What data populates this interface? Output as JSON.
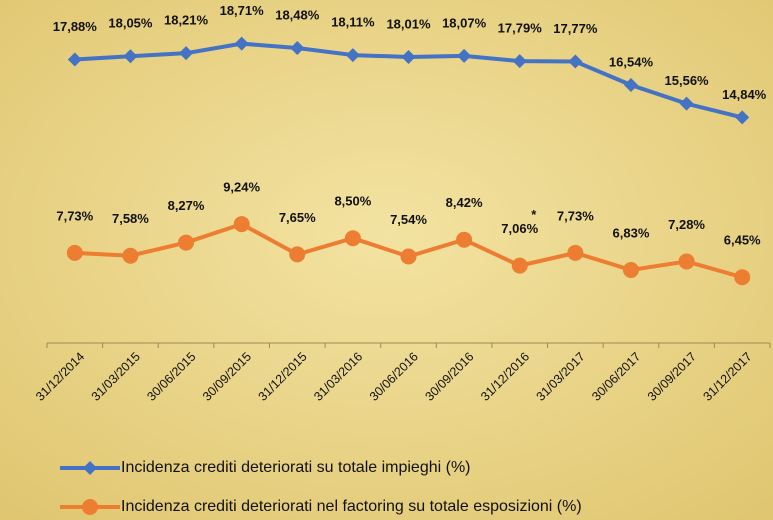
{
  "chart_data": {
    "type": "line",
    "categories": [
      "31/12/2014",
      "31/03/2015",
      "30/06/2015",
      "30/09/2015",
      "31/12/2015",
      "31/03/2016",
      "30/06/2016",
      "30/09/2016",
      "31/12/2016",
      "31/03/2017",
      "30/06/2017",
      "30/09/2017",
      "31/12/2017"
    ],
    "series": [
      {
        "name": "Incidenza crediti deteriorati su totale impieghi (%)",
        "color": "#4472c4",
        "marker": "diamond",
        "values": [
          17.88,
          18.05,
          18.21,
          18.71,
          18.48,
          18.11,
          18.01,
          18.07,
          17.79,
          17.77,
          16.54,
          15.56,
          14.84
        ],
        "value_labels": [
          "17,88%",
          "18,05%",
          "18,21%",
          "18,71%",
          "18,48%",
          "18,11%",
          "18,01%",
          "18,07%",
          "17,79%",
          "17,77%",
          "16,54%",
          "15,56%",
          "14,84%"
        ]
      },
      {
        "name": "Incidenza crediti deteriorati nel factoring su totale esposizioni (%)",
        "color": "#ed7d31",
        "marker": "circle",
        "values": [
          7.73,
          7.58,
          8.27,
          9.24,
          7.65,
          8.5,
          7.54,
          8.42,
          7.06,
          7.73,
          6.83,
          7.28,
          6.45
        ],
        "value_labels": [
          "7,73%",
          "7,58%",
          "8,27%",
          "9,24%",
          "7,65%",
          "8,50%",
          "7,54%",
          "8,42%",
          "7,06%",
          "7,73%",
          "6,83%",
          "7,28%",
          "6,45%"
        ]
      }
    ],
    "annotations": [
      {
        "text": "*",
        "category_index": 8
      }
    ],
    "ylim": [
      3,
      21
    ],
    "legend": "bottom"
  }
}
